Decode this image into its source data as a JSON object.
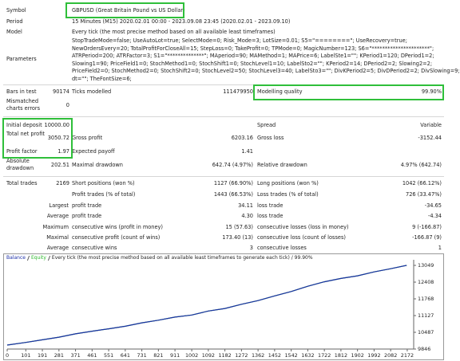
{
  "header": {
    "rows": [
      {
        "label": "Symbol",
        "value": "GBPUSD (Great Britain Pound vs US Dollar)"
      },
      {
        "label": "Period",
        "value": "15 Minutes (M15) 2020.02.01 00:00 - 2023.09.08 23:45 (2020.02.01 - 2023.09.10)"
      },
      {
        "label": "Model",
        "value": "Every tick (the most precise method based on all available least timeframes)"
      }
    ]
  },
  "parameters": {
    "label": "Parameters",
    "lines": [
      "StopTradeMode=false; UseAutoLot=true; SelectMode=0; Risk_Mode=3; LotSize=0.01; S5=\"========\"; UseRecovery=true;",
      "NewOrdersEvery=20; TotalProfitForCloseAll=15; StepLoss=0; TakeProfit=0; TPMode=0; MagicNumber=123; S6=\"**********************\";",
      "ATRPeriod=200; ATRFactor=3; S1=\"**************\"; MAperiod=90; MAMethod=1; MAPrice=6; LabelSte1=\"\"; KPeriod1=120; DPeriod1=2;",
      "Slowing1=90; PriceField1=0; StochMethod1=0; StochShift1=0; StochLevel1=10; LabelSto2=\"\"; KPeriod2=14; DPeriod2=2; Slowing2=2;",
      "PriceField2=0; StochMethod2=0; StochShift2=0; StochLevel2=50; StochLevel3=40; LabelSto3=\"\"; DivKPeriod2=5; DivDPeriod2=2; DivSlowing=9;",
      "dt=\"\"; TheFontSize=6;"
    ]
  },
  "stats": {
    "rows": [
      {
        "l1": "Bars in test",
        "v1": "90174",
        "l2": "Ticks modelled",
        "v2": "111479950",
        "l3": "Modelling quality",
        "v3": "99.90%"
      },
      {
        "l1": "Mismatched charts errors",
        "v1": "0"
      },
      {
        "l1": "Initial deposit",
        "v1": "10000.00",
        "l3": "Spread",
        "v3": "Variable"
      },
      {
        "l1": "Total net profit",
        "v1": "3050.72",
        "l2": "Gross profit",
        "v2": "6203.16",
        "l3": "Gross loss",
        "v3": "-3152.44"
      },
      {
        "l1": "Profit factor",
        "v1": "1.97",
        "l2": "Expected payoff",
        "v2": "1.41"
      },
      {
        "l1": "Absolute drawdown",
        "v1": "202.51",
        "l2": "Maximal drawdown",
        "v2": "642.74 (4.97%)",
        "l3": "Relative drawdown",
        "v3": "4.97% (642.74)"
      },
      {
        "l1": "Total trades",
        "v1": "2169",
        "l2": "Short positions (won %)",
        "v2": "1127 (66.90%)",
        "l3": "Long positions (won %)",
        "v3": "1042 (66.12%)"
      },
      {
        "l2": "Profit trades (% of total)",
        "v2": "1443 (66.53%)",
        "l3": "Loss trades (% of total)",
        "v3": "726 (33.47%)"
      },
      {
        "l1": "Largest",
        "l2": "profit trade",
        "v2": "34.11",
        "l3": "loss trade",
        "v3": "-34.65"
      },
      {
        "l1": "Average",
        "l2": "profit trade",
        "v2": "4.30",
        "l3": "loss trade",
        "v3": "-4.34"
      },
      {
        "l1": "Maximum",
        "l2": "consecutive wins (profit in money)",
        "v2": "15 (57.63)",
        "l3": "consecutive losses (loss in money)",
        "v3": "9 (-166.87)"
      },
      {
        "l1": "Maximal",
        "l2": "consecutive profit (count of wins)",
        "v2": "173.40 (13)",
        "l3": "consecutive loss (count of losses)",
        "v3": "-166.87 (9)"
      },
      {
        "l1": "Average",
        "l2": "consecutive wins",
        "v2": "3",
        "l3": "consecutive losses",
        "v3": "1"
      }
    ]
  },
  "chart_data": {
    "type": "line",
    "legend_text": "Every tick (the most precise method based on all available least timeframes to generate each tick) / 99.90%",
    "x": [
      0,
      101,
      191,
      281,
      371,
      461,
      551,
      641,
      731,
      821,
      911,
      1002,
      1092,
      1182,
      1272,
      1362,
      1452,
      1542,
      1632,
      1722,
      1812,
      1902,
      1992,
      2082,
      2169
    ],
    "series": [
      {
        "name": "Balance",
        "color": "#1c2fa8",
        "values": [
          10000,
          10100,
          10200,
          10300,
          10430,
          10530,
          10620,
          10720,
          10850,
          10950,
          11070,
          11150,
          11300,
          11400,
          11560,
          11700,
          11880,
          12050,
          12250,
          12420,
          12550,
          12650,
          12800,
          12920,
          13050
        ]
      },
      {
        "name": "Equity",
        "color": "#2db82d",
        "values": [
          10000,
          10100,
          10200,
          10300,
          10430,
          10530,
          10620,
          10720,
          10850,
          10950,
          11070,
          11150,
          11300,
          11400,
          11560,
          11700,
          11880,
          12050,
          12250,
          12420,
          12550,
          12650,
          12800,
          12920,
          13050
        ]
      }
    ],
    "xlim": [
      0,
      2207
    ],
    "ylim": [
      9846,
      13263
    ],
    "xticks": [
      0,
      101,
      191,
      281,
      371,
      461,
      551,
      641,
      731,
      821,
      911,
      1002,
      1092,
      1182,
      1272,
      1362,
      1452,
      1542,
      1632,
      1722,
      1812,
      1902,
      1992,
      2082,
      2172
    ],
    "yticks": [
      9846,
      10487,
      11127,
      11768,
      12408,
      13049
    ]
  }
}
